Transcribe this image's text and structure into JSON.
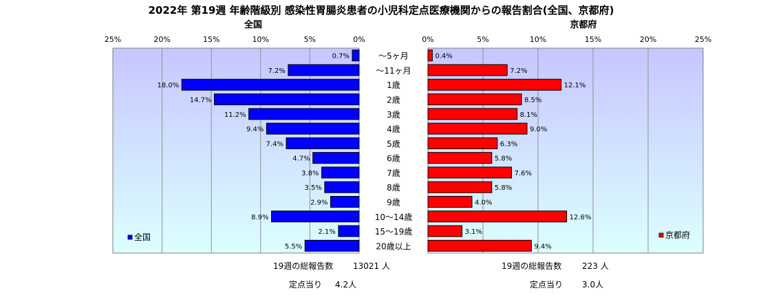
{
  "chart_data": {
    "type": "bar",
    "title": "2022年 第19週  年齢階級別 感染性胃腸炎患者の小児科定点医療機関からの報告割合(全国、京都府)",
    "categories": [
      "～5ヶ月",
      "～11ヶ月",
      "1歳",
      "2歳",
      "3歳",
      "4歳",
      "5歳",
      "6歳",
      "7歳",
      "8歳",
      "9歳",
      "10～14歳",
      "15～19歳",
      "20歳以上"
    ],
    "xlim": [
      0,
      25
    ],
    "ticks": [
      0,
      5,
      10,
      15,
      20,
      25
    ],
    "tick_labels": [
      "0%",
      "5%",
      "10%",
      "15%",
      "20%",
      "25%"
    ],
    "grid": true,
    "series": [
      {
        "name": "全国",
        "side_title": "全国",
        "legend": "全国",
        "color": "#0000ff",
        "values": [
          0.7,
          7.2,
          18.0,
          14.7,
          11.2,
          9.4,
          7.4,
          4.7,
          3.8,
          3.5,
          2.9,
          8.9,
          2.1,
          5.5
        ],
        "labels": [
          "0.7%",
          "7.2%",
          "18.0%",
          "14.7%",
          "11.2%",
          "9.4%",
          "7.4%",
          "4.7%",
          "3.8%",
          "3.5%",
          "2.9%",
          "8.9%",
          "2.1%",
          "5.5%"
        ],
        "legend_position": "bottom-left"
      },
      {
        "name": "京都府",
        "side_title": "京都府",
        "legend": "京都府",
        "color": "#ff0000",
        "values": [
          0.4,
          7.2,
          12.1,
          8.5,
          8.1,
          9.0,
          6.3,
          5.8,
          7.6,
          5.8,
          4.0,
          12.6,
          3.1,
          9.4
        ],
        "labels": [
          "0.4%",
          "7.2%",
          "12.1%",
          "8.5%",
          "8.1%",
          "9.0%",
          "6.3%",
          "5.8%",
          "7.6%",
          "5.8%",
          "4.0%",
          "12.6%",
          "3.1%",
          "9.4%"
        ],
        "legend_position": "bottom-right"
      }
    ],
    "plot_colors": {
      "top": "#c6c6ff",
      "bottom": "#dcffff",
      "border": "#808080",
      "grid": "#909090"
    }
  },
  "footer": {
    "left": {
      "total_label": "19週の総報告数",
      "total_value": "13021 人",
      "per_label": "定点当り",
      "per_value": "4.2人"
    },
    "right": {
      "total_label": "19週の総報告数",
      "total_value": "223 人",
      "per_label": "定点当り",
      "per_value": "3.0人"
    }
  }
}
